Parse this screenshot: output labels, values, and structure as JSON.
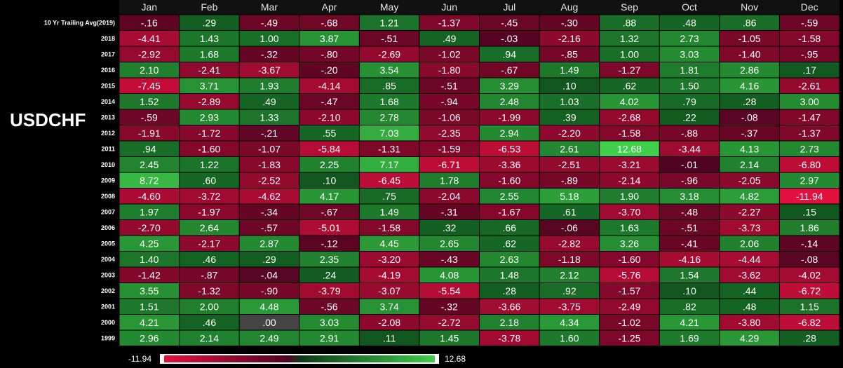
{
  "pair_label": "USDCHF",
  "chart_data": {
    "type": "heatmap",
    "title": "",
    "xlabel": "",
    "ylabel": "",
    "columns": [
      "Jan",
      "Feb",
      "Mar",
      "Apr",
      "May",
      "Jun",
      "Jul",
      "Aug",
      "Sep",
      "Oct",
      "Nov",
      "Dec"
    ],
    "rows": [
      {
        "label": "10 Yr Trailing Avg(2019)",
        "values": [
          -0.16,
          0.29,
          -0.49,
          -0.68,
          1.21,
          -1.37,
          -0.45,
          -0.3,
          0.88,
          0.48,
          0.86,
          -0.59
        ],
        "labels": [
          "-.16",
          ".29",
          "-.49",
          "-.68",
          "1.21",
          "-1.37",
          "-.45",
          "-.30",
          ".88",
          ".48",
          ".86",
          "-.59"
        ]
      },
      {
        "label": "2018",
        "values": [
          -4.41,
          1.43,
          1.0,
          3.87,
          -0.51,
          0.49,
          -0.03,
          -2.16,
          1.32,
          2.73,
          -1.05,
          -1.58
        ],
        "labels": [
          "-4.41",
          "1.43",
          "1.00",
          "3.87",
          "-.51",
          ".49",
          "-.03",
          "-2.16",
          "1.32",
          "2.73",
          "-1.05",
          "-1.58"
        ]
      },
      {
        "label": "2017",
        "values": [
          -2.92,
          1.68,
          -0.32,
          -0.8,
          -2.69,
          -1.02,
          0.94,
          -0.85,
          1.0,
          3.03,
          -1.4,
          -0.95
        ],
        "labels": [
          "-2.92",
          "1.68",
          "-.32",
          "-.80",
          "-2.69",
          "-1.02",
          ".94",
          "-.85",
          "1.00",
          "3.03",
          "-1.40",
          "-.95"
        ]
      },
      {
        "label": "2016",
        "values": [
          2.1,
          -2.41,
          -3.67,
          -0.2,
          3.54,
          -1.8,
          -0.67,
          1.49,
          -1.27,
          1.81,
          2.86,
          0.17
        ],
        "labels": [
          "2.10",
          "-2.41",
          "-3.67",
          "-.20",
          "3.54",
          "-1.80",
          "-.67",
          "1.49",
          "-1.27",
          "1.81",
          "2.86",
          ".17"
        ]
      },
      {
        "label": "2015",
        "values": [
          -7.45,
          3.71,
          1.93,
          -4.14,
          0.85,
          -0.51,
          3.29,
          0.1,
          0.62,
          1.5,
          4.16,
          -2.61
        ],
        "labels": [
          "-7.45",
          "3.71",
          "1.93",
          "-4.14",
          ".85",
          "-.51",
          "3.29",
          ".10",
          ".62",
          "1.50",
          "4.16",
          "-2.61"
        ]
      },
      {
        "label": "2014",
        "values": [
          1.52,
          -2.89,
          0.49,
          -0.47,
          1.68,
          -0.94,
          2.48,
          1.03,
          4.02,
          0.79,
          0.28,
          3.0
        ],
        "labels": [
          "1.52",
          "-2.89",
          ".49",
          "-.47",
          "1.68",
          "-.94",
          "2.48",
          "1.03",
          "4.02",
          ".79",
          ".28",
          "3.00"
        ]
      },
      {
        "label": "2013",
        "values": [
          -0.59,
          2.93,
          1.33,
          -2.1,
          2.78,
          -1.06,
          -1.99,
          0.39,
          -2.68,
          0.22,
          -0.08,
          -1.47
        ],
        "labels": [
          "-.59",
          "2.93",
          "1.33",
          "-2.10",
          "2.78",
          "-1.06",
          "-1.99",
          ".39",
          "-2.68",
          ".22",
          "-.08",
          "-1.47"
        ]
      },
      {
        "label": "2012",
        "values": [
          -1.91,
          -1.72,
          -0.21,
          0.55,
          7.03,
          -2.35,
          2.94,
          -2.2,
          -1.58,
          -0.88,
          -0.37,
          -1.37
        ],
        "labels": [
          "-1.91",
          "-1.72",
          "-.21",
          ".55",
          "7.03",
          "-2.35",
          "2.94",
          "-2.20",
          "-1.58",
          "-.88",
          "-.37",
          "-1.37"
        ]
      },
      {
        "label": "2011",
        "values": [
          0.94,
          -1.6,
          -1.07,
          -5.84,
          -1.31,
          -1.59,
          -6.53,
          2.61,
          12.68,
          -3.44,
          4.13,
          2.73
        ],
        "labels": [
          ".94",
          "-1.60",
          "-1.07",
          "-5.84",
          "-1.31",
          "-1.59",
          "-6.53",
          "2.61",
          "12.68",
          "-3.44",
          "4.13",
          "2.73"
        ]
      },
      {
        "label": "2010",
        "values": [
          2.45,
          1.22,
          -1.83,
          2.25,
          7.17,
          -6.71,
          -3.36,
          -2.51,
          -3.21,
          -0.01,
          2.14,
          -6.8
        ],
        "labels": [
          "2.45",
          "1.22",
          "-1.83",
          "2.25",
          "7.17",
          "-6.71",
          "-3.36",
          "-2.51",
          "-3.21",
          "-.01",
          "2.14",
          "-6.80"
        ]
      },
      {
        "label": "2009",
        "values": [
          8.72,
          0.6,
          -2.52,
          0.1,
          -6.45,
          1.78,
          -1.6,
          -0.89,
          -2.14,
          -0.96,
          -2.05,
          2.97
        ],
        "labels": [
          "8.72",
          ".60",
          "-2.52",
          ".10",
          "-6.45",
          "1.78",
          "-1.60",
          "-.89",
          "-2.14",
          "-.96",
          "-2.05",
          "2.97"
        ]
      },
      {
        "label": "2008",
        "values": [
          -4.6,
          -3.72,
          -4.62,
          4.17,
          0.75,
          -2.04,
          2.55,
          5.18,
          1.9,
          3.18,
          4.82,
          -11.94
        ],
        "labels": [
          "-4.60",
          "-3.72",
          "-4.62",
          "4.17",
          ".75",
          "-2.04",
          "2.55",
          "5.18",
          "1.90",
          "3.18",
          "4.82",
          "-11.94"
        ]
      },
      {
        "label": "2007",
        "values": [
          1.97,
          -1.97,
          -0.34,
          -0.67,
          1.49,
          -0.31,
          -1.67,
          0.61,
          -3.7,
          -0.48,
          -2.27,
          0.15
        ],
        "labels": [
          "1.97",
          "-1.97",
          "-.34",
          "-.67",
          "1.49",
          "-.31",
          "-1.67",
          ".61",
          "-3.70",
          "-.48",
          "-2.27",
          ".15"
        ]
      },
      {
        "label": "2006",
        "values": [
          -2.7,
          2.64,
          -0.57,
          -5.01,
          -1.58,
          0.32,
          0.66,
          -0.06,
          1.63,
          -0.51,
          -3.73,
          1.86
        ],
        "labels": [
          "-2.70",
          "2.64",
          "-.57",
          "-5.01",
          "-1.58",
          ".32",
          ".66",
          "-.06",
          "1.63",
          "-.51",
          "-3.73",
          "1.86"
        ]
      },
      {
        "label": "2005",
        "values": [
          4.25,
          -2.17,
          2.87,
          -0.12,
          4.45,
          2.65,
          0.62,
          -2.82,
          3.26,
          -0.41,
          2.06,
          -0.14
        ],
        "labels": [
          "4.25",
          "-2.17",
          "2.87",
          "-.12",
          "4.45",
          "2.65",
          ".62",
          "-2.82",
          "3.26",
          "-.41",
          "2.06",
          "-.14"
        ]
      },
      {
        "label": "2004",
        "values": [
          1.4,
          0.46,
          0.29,
          2.35,
          -3.2,
          -0.43,
          2.63,
          -1.18,
          -1.6,
          -4.16,
          -4.44,
          -0.08
        ],
        "labels": [
          "1.40",
          ".46",
          ".29",
          "2.35",
          "-3.20",
          "-.43",
          "2.63",
          "-1.18",
          "-1.60",
          "-4.16",
          "-4.44",
          "-.08"
        ]
      },
      {
        "label": "2003",
        "values": [
          -1.42,
          -0.87,
          -0.04,
          0.24,
          -4.19,
          4.08,
          1.48,
          2.12,
          -5.76,
          1.54,
          -3.62,
          -4.02
        ],
        "labels": [
          "-1.42",
          "-.87",
          "-.04",
          ".24",
          "-4.19",
          "4.08",
          "1.48",
          "2.12",
          "-5.76",
          "1.54",
          "-3.62",
          "-4.02"
        ]
      },
      {
        "label": "2002",
        "values": [
          3.55,
          -1.32,
          -0.9,
          -3.79,
          -3.07,
          -5.54,
          0.28,
          0.92,
          -1.57,
          0.1,
          0.44,
          -6.72
        ],
        "labels": [
          "3.55",
          "-1.32",
          "-.90",
          "-3.79",
          "-3.07",
          "-5.54",
          ".28",
          ".92",
          "-1.57",
          ".10",
          ".44",
          "-6.72"
        ]
      },
      {
        "label": "2001",
        "values": [
          1.51,
          2.0,
          4.48,
          -0.56,
          3.74,
          -0.32,
          -3.66,
          -3.75,
          -2.49,
          0.82,
          0.48,
          1.15
        ],
        "labels": [
          "1.51",
          "2.00",
          "4.48",
          "-.56",
          "3.74",
          "-.32",
          "-3.66",
          "-3.75",
          "-2.49",
          ".82",
          ".48",
          "1.15"
        ]
      },
      {
        "label": "2000",
        "values": [
          4.21,
          0.46,
          0.0,
          3.03,
          -2.08,
          -2.72,
          2.18,
          4.34,
          -1.02,
          4.21,
          -3.8,
          -6.82
        ],
        "labels": [
          "4.21",
          ".46",
          ".00",
          "3.03",
          "-2.08",
          "-2.72",
          "2.18",
          "4.34",
          "-1.02",
          "4.21",
          "-3.80",
          "-6.82"
        ]
      },
      {
        "label": "1999",
        "values": [
          2.96,
          2.14,
          2.49,
          2.91,
          0.11,
          1.45,
          -3.78,
          1.6,
          -1.25,
          1.69,
          4.29,
          0.28
        ],
        "labels": [
          "2.96",
          "2.14",
          "2.49",
          "2.91",
          ".11",
          "1.45",
          "-3.78",
          "1.60",
          "-1.25",
          "1.69",
          "4.29",
          ".28"
        ]
      }
    ],
    "color_scale": {
      "min": -11.94,
      "max": 12.68,
      "min_label": "-11.94",
      "max_label": "12.68",
      "colors": {
        "strong_negative": "#e3103f",
        "weak_negative": "#4d0420",
        "neutral": "#444444",
        "weak_positive": "#0b4a1a",
        "strong_positive": "#3fcf4a",
        "background": "#000000"
      }
    }
  }
}
